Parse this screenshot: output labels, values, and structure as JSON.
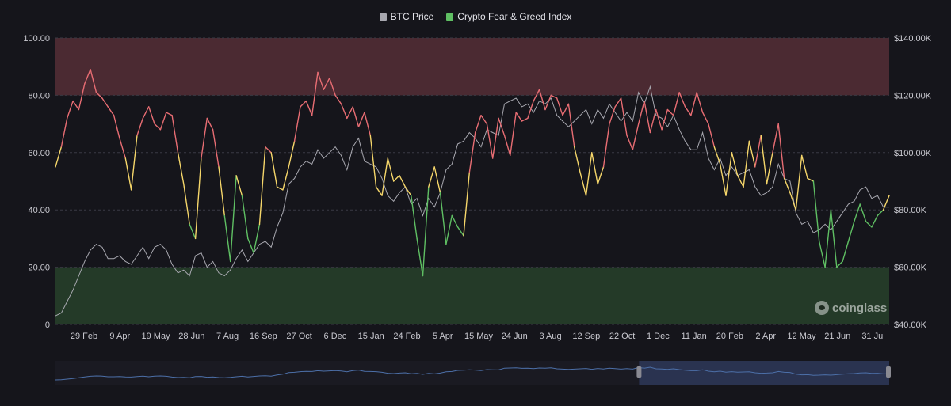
{
  "legend": {
    "btc_label": "BTC Price",
    "fgi_label": "Crypto Fear & Greed Index"
  },
  "watermark": {
    "text": "coinglass"
  },
  "colors": {
    "background": "#15151b",
    "btc_line": "#a8a8b0",
    "fgi_greed": "#e86d73",
    "fgi_neutral": "#f5d66a",
    "fgi_fear": "#5fbf63",
    "greed_zone": "#4b2a32",
    "fear_zone": "#243a28",
    "navigator_line": "#4c6fa8",
    "navigator_selection": "#2a3350"
  },
  "chart_data": {
    "type": "line",
    "title": "",
    "xlabel": "",
    "ylabel_left": "",
    "ylabel_right": "",
    "x_tick_labels": [
      "29 Feb",
      "9 Apr",
      "19 May",
      "28 Jun",
      "7 Aug",
      "16 Sep",
      "27 Oct",
      "6 Dec",
      "15 Jan",
      "24 Feb",
      "5 Apr",
      "15 May",
      "24 Jun",
      "3 Aug",
      "12 Sep",
      "22 Oct",
      "1 Dec",
      "11 Jan",
      "20 Feb",
      "2 Apr",
      "12 May",
      "21 Jun",
      "31 Jul"
    ],
    "y_left": {
      "ticks": [
        "0",
        "20.00",
        "40.00",
        "60.00",
        "80.00",
        "100.00"
      ],
      "range": [
        0,
        100
      ]
    },
    "y_right": {
      "ticks": [
        "$40.00K",
        "$60.00K",
        "$80.00K",
        "$100.00K",
        "$120.00K",
        "$140.00K"
      ],
      "range": [
        40000,
        140000
      ]
    },
    "zones": [
      {
        "name": "greed",
        "from": 80,
        "to": 100
      },
      {
        "name": "fear",
        "from": 0,
        "to": 20
      }
    ],
    "fgi_thresholds": {
      "greed_above": 60,
      "fear_below": 40
    },
    "series": [
      {
        "name": "Crypto Fear & Greed Index",
        "axis": "left",
        "values": [
          55,
          62,
          72,
          78,
          75,
          84,
          89,
          81,
          79,
          76,
          73,
          65,
          58,
          47,
          66,
          72,
          76,
          70,
          68,
          74,
          73,
          60,
          49,
          35,
          30,
          58,
          72,
          68,
          55,
          38,
          22,
          52,
          45,
          30,
          25,
          35,
          62,
          60,
          48,
          47,
          55,
          64,
          76,
          78,
          73,
          88,
          82,
          86,
          80,
          77,
          72,
          76,
          69,
          74,
          66,
          48,
          45,
          58,
          50,
          52,
          48,
          45,
          30,
          17,
          48,
          55,
          46,
          28,
          38,
          34,
          31,
          53,
          67,
          73,
          70,
          58,
          72,
          66,
          59,
          74,
          71,
          72,
          78,
          82,
          75,
          80,
          79,
          73,
          77,
          62,
          53,
          45,
          60,
          49,
          55,
          70,
          76,
          79,
          66,
          61,
          70,
          78,
          67,
          75,
          68,
          75,
          73,
          81,
          76,
          73,
          81,
          74,
          70,
          62,
          56,
          45,
          60,
          52,
          48,
          64,
          55,
          66,
          49,
          60,
          70,
          51,
          46,
          40,
          59,
          51,
          50,
          29,
          20,
          40,
          20,
          22,
          29,
          36,
          42,
          36,
          34,
          38,
          40,
          45
        ],
        "x_start": "2024-02-01",
        "x_end": "2025-08-10"
      },
      {
        "name": "BTC Price",
        "axis": "right",
        "values": [
          43000,
          44000,
          48000,
          52000,
          57000,
          62000,
          66000,
          68000,
          67000,
          63000,
          63000,
          64000,
          62000,
          61000,
          64000,
          67000,
          63000,
          67000,
          68000,
          66000,
          61000,
          58000,
          59000,
          57000,
          64000,
          65000,
          60000,
          62000,
          58000,
          57000,
          59000,
          63000,
          66000,
          62000,
          65000,
          68000,
          69000,
          67000,
          74000,
          79000,
          89000,
          91000,
          95000,
          97000,
          96000,
          101000,
          98000,
          100000,
          102000,
          99000,
          94000,
          102000,
          105000,
          97000,
          96000,
          95000,
          91000,
          85000,
          83000,
          86000,
          88000,
          82000,
          84000,
          78000,
          84000,
          81000,
          86000,
          94000,
          96000,
          103000,
          104000,
          107000,
          105000,
          102000,
          108000,
          107000,
          106000,
          117000,
          118000,
          119000,
          116000,
          117000,
          114000,
          118000,
          117000,
          119000,
          113000,
          111000,
          109000,
          111000,
          113000,
          115000,
          110000,
          115000,
          112000,
          117000,
          114000,
          111000,
          114000,
          111000,
          121000,
          117000,
          123000,
          113000,
          112000,
          109000,
          113000,
          108000,
          104000,
          101000,
          101000,
          107000,
          98000,
          94000,
          98000,
          92000,
          95000,
          92000,
          93000,
          94000,
          88000,
          85000,
          86000,
          88000,
          96000,
          91000,
          90000,
          79000,
          75000,
          76000,
          72000,
          73000,
          75000,
          73000,
          76000,
          79000,
          82000,
          83000,
          87000,
          88000,
          84000,
          85000,
          81000,
          81000
        ]
      }
    ],
    "grid": true,
    "legend_position": "top-center",
    "navigator": {
      "selection_start": 0.7,
      "selection_end": 1.0
    }
  }
}
